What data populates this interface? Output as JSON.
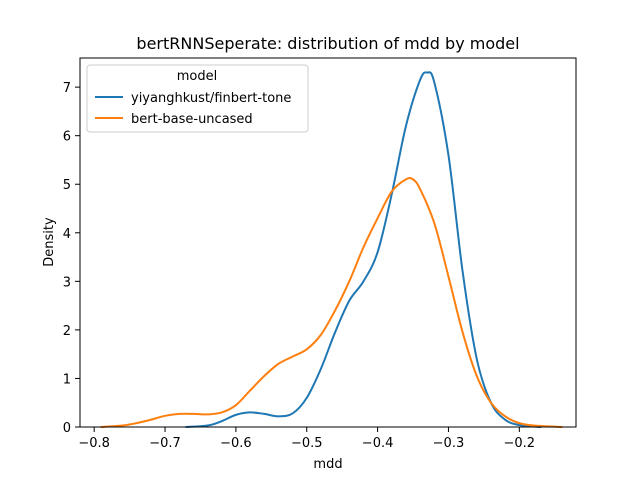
{
  "chart_data": {
    "type": "line",
    "title": "bertRNNSeperate: distribution of mdd by model",
    "xlabel": "mdd",
    "ylabel": "Density",
    "xlim": [
      -0.82,
      -0.12
    ],
    "ylim": [
      0,
      7.6
    ],
    "xticks": [
      -0.8,
      -0.7,
      -0.6,
      -0.5,
      -0.4,
      -0.3,
      -0.2
    ],
    "xtick_labels": [
      "−0.8",
      "−0.7",
      "−0.6",
      "−0.5",
      "−0.4",
      "−0.3",
      "−0.2"
    ],
    "yticks": [
      0,
      1,
      2,
      3,
      4,
      5,
      6,
      7
    ],
    "ytick_labels": [
      "0",
      "1",
      "2",
      "3",
      "4",
      "5",
      "6",
      "7"
    ],
    "grid": false,
    "legend": {
      "title": "model",
      "placement": "top-left"
    },
    "series": [
      {
        "name": "yiyanghkust/finbert-tone",
        "color": "#1f77b4",
        "points": [
          [
            -0.67,
            0.0
          ],
          [
            -0.64,
            0.03
          ],
          [
            -0.62,
            0.12
          ],
          [
            -0.6,
            0.25
          ],
          [
            -0.58,
            0.3
          ],
          [
            -0.56,
            0.27
          ],
          [
            -0.54,
            0.22
          ],
          [
            -0.52,
            0.28
          ],
          [
            -0.5,
            0.6
          ],
          [
            -0.48,
            1.2
          ],
          [
            -0.46,
            1.95
          ],
          [
            -0.44,
            2.6
          ],
          [
            -0.42,
            3.0
          ],
          [
            -0.4,
            3.6
          ],
          [
            -0.38,
            4.8
          ],
          [
            -0.36,
            6.2
          ],
          [
            -0.34,
            7.15
          ],
          [
            -0.33,
            7.3
          ],
          [
            -0.32,
            7.1
          ],
          [
            -0.3,
            5.6
          ],
          [
            -0.28,
            3.2
          ],
          [
            -0.26,
            1.4
          ],
          [
            -0.24,
            0.5
          ],
          [
            -0.22,
            0.15
          ],
          [
            -0.2,
            0.04
          ],
          [
            -0.17,
            0.0
          ]
        ]
      },
      {
        "name": "bert-base-uncased",
        "color": "#ff7f0e",
        "points": [
          [
            -0.79,
            0.0
          ],
          [
            -0.76,
            0.03
          ],
          [
            -0.74,
            0.08
          ],
          [
            -0.72,
            0.15
          ],
          [
            -0.7,
            0.23
          ],
          [
            -0.68,
            0.27
          ],
          [
            -0.66,
            0.27
          ],
          [
            -0.64,
            0.26
          ],
          [
            -0.62,
            0.3
          ],
          [
            -0.6,
            0.45
          ],
          [
            -0.58,
            0.75
          ],
          [
            -0.56,
            1.05
          ],
          [
            -0.54,
            1.3
          ],
          [
            -0.52,
            1.45
          ],
          [
            -0.5,
            1.6
          ],
          [
            -0.48,
            1.9
          ],
          [
            -0.46,
            2.4
          ],
          [
            -0.44,
            3.0
          ],
          [
            -0.42,
            3.7
          ],
          [
            -0.4,
            4.3
          ],
          [
            -0.38,
            4.85
          ],
          [
            -0.36,
            5.1
          ],
          [
            -0.35,
            5.1
          ],
          [
            -0.34,
            4.9
          ],
          [
            -0.32,
            4.2
          ],
          [
            -0.3,
            3.1
          ],
          [
            -0.28,
            1.95
          ],
          [
            -0.26,
            1.05
          ],
          [
            -0.24,
            0.5
          ],
          [
            -0.22,
            0.22
          ],
          [
            -0.2,
            0.08
          ],
          [
            -0.18,
            0.03
          ],
          [
            -0.14,
            0.0
          ]
        ]
      }
    ]
  }
}
